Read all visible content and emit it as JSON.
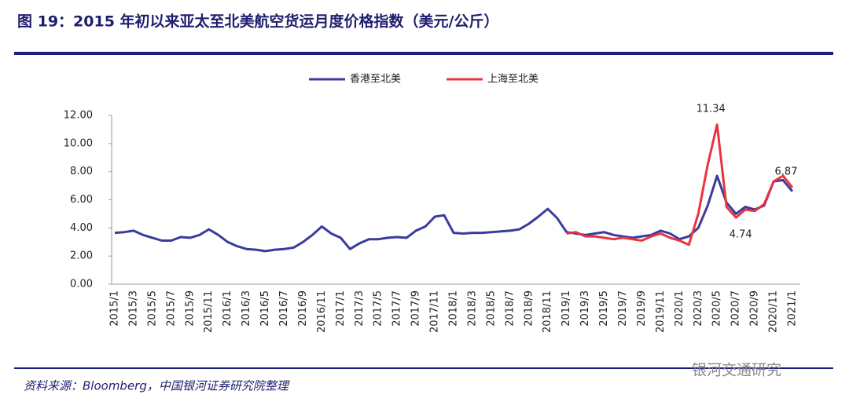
{
  "chart_data": {
    "type": "line",
    "title": "图 19：2015 年初以来亚太至北美航空货运月度价格指数（美元/公斤）",
    "source": "资料来源：Bloomberg，中国银河证券研究院整理",
    "watermark": "银河交通研究",
    "categories": [
      "2015/1",
      null,
      "2015/3",
      null,
      "2015/5",
      null,
      "2015/7",
      null,
      "2015/9",
      null,
      "2015/11",
      null,
      "2016/1",
      null,
      "2016/3",
      null,
      "2016/5",
      null,
      "2016/7",
      null,
      "2016/9",
      null,
      "2016/11",
      null,
      "2017/1",
      null,
      "2017/3",
      null,
      "2017/5",
      null,
      "2017/7",
      null,
      "2017/9",
      null,
      "2017/11",
      null,
      "2018/1",
      null,
      "2018/3",
      null,
      "2018/5",
      null,
      "2018/7",
      null,
      "2018/9",
      null,
      "2018/11",
      null,
      "2019/1",
      null,
      "2019/3",
      null,
      "2019/5",
      null,
      "2019/7",
      null,
      "2019/9",
      null,
      "2019/11",
      null,
      "2020/1",
      null,
      "2020/3",
      null,
      "2020/5",
      null,
      "2020/7",
      null,
      "2020/9",
      null,
      "2020/11",
      null,
      "2021/1"
    ],
    "series": [
      {
        "name": "香港至北美",
        "color": "#3b3b9e",
        "values": [
          3.65,
          3.7,
          3.8,
          3.5,
          3.3,
          3.1,
          3.1,
          3.35,
          3.3,
          3.5,
          3.9,
          3.5,
          3.0,
          2.7,
          2.5,
          2.45,
          2.35,
          2.45,
          2.5,
          2.6,
          3.0,
          3.5,
          4.1,
          3.6,
          3.3,
          2.5,
          2.9,
          3.2,
          3.2,
          3.3,
          3.35,
          3.3,
          3.8,
          4.1,
          4.8,
          4.9,
          3.65,
          3.6,
          3.65,
          3.65,
          3.7,
          3.75,
          3.8,
          3.9,
          4.3,
          4.8,
          5.35,
          4.7,
          3.7,
          3.6,
          3.5,
          3.6,
          3.7,
          3.5,
          3.4,
          3.3,
          3.4,
          3.5,
          3.8,
          3.6,
          3.2,
          3.4,
          4.0,
          5.6,
          7.7,
          5.8,
          5.0,
          5.5,
          5.3,
          5.6,
          7.3,
          7.4,
          6.6
        ]
      },
      {
        "name": "上海至北美",
        "color": "#e8343e",
        "values": [
          null,
          null,
          null,
          null,
          null,
          null,
          null,
          null,
          null,
          null,
          null,
          null,
          null,
          null,
          null,
          null,
          null,
          null,
          null,
          null,
          null,
          null,
          null,
          null,
          null,
          null,
          null,
          null,
          null,
          null,
          null,
          null,
          null,
          null,
          null,
          null,
          null,
          null,
          null,
          null,
          null,
          null,
          null,
          null,
          null,
          null,
          null,
          null,
          3.6,
          3.7,
          3.4,
          3.4,
          3.3,
          3.2,
          3.3,
          3.2,
          3.1,
          3.4,
          3.6,
          3.3,
          3.1,
          2.8,
          5.0,
          8.5,
          11.34,
          5.5,
          4.74,
          5.3,
          5.2,
          5.7,
          7.3,
          7.7,
          6.87
        ],
        "value_labels": [
          null,
          null,
          null,
          null,
          null,
          null,
          null,
          null,
          null,
          null,
          null,
          null,
          null,
          null,
          null,
          null,
          null,
          null,
          null,
          null,
          null,
          null,
          null,
          null,
          null,
          null,
          null,
          null,
          null,
          null,
          null,
          null,
          null,
          null,
          null,
          null,
          null,
          null,
          null,
          null,
          null,
          null,
          null,
          null,
          null,
          null,
          null,
          null,
          null,
          null,
          null,
          null,
          null,
          null,
          null,
          null,
          null,
          null,
          null,
          null,
          null,
          null,
          null,
          null,
          "11.34",
          null,
          "4.74",
          null,
          null,
          null,
          null,
          null,
          "6.87"
        ]
      }
    ],
    "ylim": [
      0,
      12
    ],
    "yticks": [
      {
        "value": 0,
        "label": "0.00"
      },
      {
        "value": 2,
        "label": "2.00"
      },
      {
        "value": 4,
        "label": "4.00"
      },
      {
        "value": 6,
        "label": "6.00"
      },
      {
        "value": 8,
        "label": "8.00"
      },
      {
        "value": 10,
        "label": "10.00"
      },
      {
        "value": 12,
        "label": "12.00"
      }
    ],
    "grid": false,
    "legend": "top"
  }
}
